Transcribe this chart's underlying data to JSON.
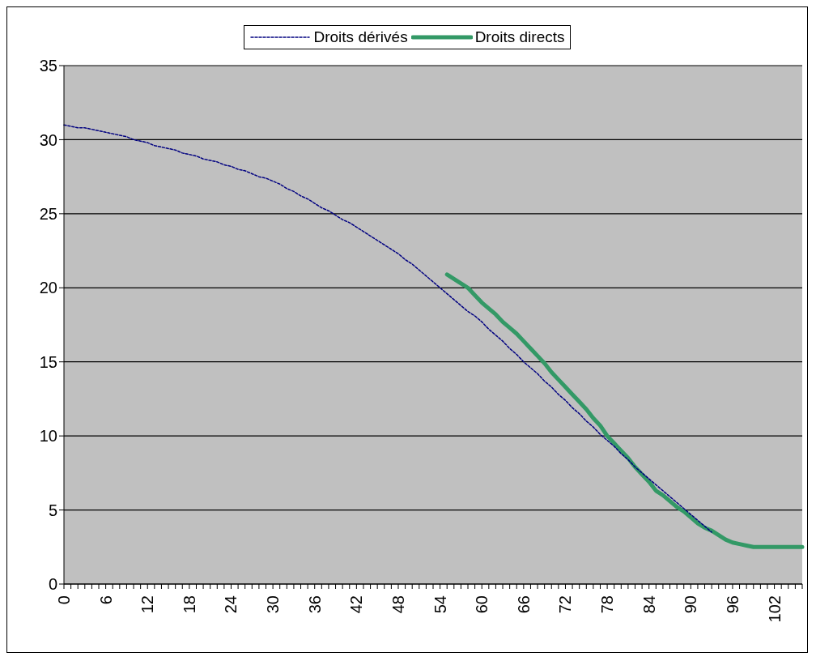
{
  "chart_data": {
    "type": "line",
    "categories": [
      "0",
      null,
      null,
      null,
      null,
      null,
      "6",
      null,
      null,
      null,
      null,
      null,
      "12",
      null,
      null,
      null,
      null,
      null,
      "18",
      null,
      null,
      null,
      null,
      null,
      "24",
      null,
      null,
      null,
      null,
      null,
      "30",
      null,
      null,
      null,
      null,
      null,
      "36",
      null,
      null,
      null,
      null,
      null,
      "42",
      null,
      null,
      null,
      null,
      null,
      "48",
      null,
      null,
      null,
      null,
      null,
      "54",
      null,
      null,
      null,
      null,
      null,
      "60",
      null,
      null,
      null,
      null,
      null,
      "66",
      null,
      null,
      null,
      null,
      null,
      "72",
      null,
      null,
      null,
      null,
      null,
      "78",
      null,
      null,
      null,
      null,
      null,
      "84",
      null,
      null,
      null,
      null,
      null,
      "90",
      null,
      null,
      null,
      null,
      null,
      "96",
      null,
      null,
      null,
      null,
      null,
      "102",
      null,
      null,
      null,
      null
    ],
    "series": [
      {
        "name": "Droits dérivés",
        "color": "#000080",
        "line_style": "dashed",
        "values": [
          31.0,
          30.9,
          30.8,
          30.8,
          30.7,
          30.6,
          30.5,
          30.4,
          30.3,
          30.2,
          30.0,
          29.9,
          29.8,
          29.6,
          29.5,
          29.4,
          29.3,
          29.1,
          29.0,
          28.9,
          28.7,
          28.6,
          28.5,
          28.3,
          28.2,
          28.0,
          27.9,
          27.7,
          27.5,
          27.4,
          27.2,
          27.0,
          26.7,
          26.5,
          26.2,
          26.0,
          25.7,
          25.4,
          25.2,
          24.9,
          24.6,
          24.4,
          24.1,
          23.8,
          23.5,
          23.2,
          22.9,
          22.6,
          22.3,
          21.9,
          21.6,
          21.2,
          20.8,
          20.4,
          20.0,
          19.6,
          19.2,
          18.8,
          18.4,
          18.1,
          17.7,
          17.2,
          16.8,
          16.4,
          15.9,
          15.5,
          15.0,
          14.6,
          14.2,
          13.7,
          13.3,
          12.8,
          12.4,
          11.9,
          11.5,
          11.0,
          10.6,
          10.1,
          9.7,
          9.3,
          8.8,
          8.4,
          7.9,
          7.5,
          7.1,
          6.7,
          6.3,
          5.9,
          5.5,
          5.1,
          4.7,
          4.3,
          3.9,
          3.5,
          null,
          null,
          null,
          null,
          null,
          null,
          null,
          null,
          null,
          null,
          null,
          null,
          null
        ]
      },
      {
        "name": "Droits directs",
        "color": "#339966",
        "line_style": "solid",
        "values": [
          null,
          null,
          null,
          null,
          null,
          null,
          null,
          null,
          null,
          null,
          null,
          null,
          null,
          null,
          null,
          null,
          null,
          null,
          null,
          null,
          null,
          null,
          null,
          null,
          null,
          null,
          null,
          null,
          null,
          null,
          null,
          null,
          null,
          null,
          null,
          null,
          null,
          null,
          null,
          null,
          null,
          null,
          null,
          null,
          null,
          null,
          null,
          null,
          null,
          null,
          null,
          null,
          null,
          null,
          null,
          20.9,
          20.6,
          20.3,
          20.0,
          19.5,
          19.0,
          18.6,
          18.2,
          17.7,
          17.3,
          16.9,
          16.4,
          15.9,
          15.4,
          14.9,
          14.3,
          13.8,
          13.3,
          12.8,
          12.3,
          11.8,
          11.2,
          10.7,
          10.0,
          9.5,
          9.0,
          8.5,
          7.9,
          7.4,
          6.9,
          6.3,
          6.0,
          5.6,
          5.2,
          4.9,
          4.5,
          4.1,
          3.8,
          3.6,
          3.3,
          3.0,
          2.8,
          2.7,
          2.6,
          2.5,
          2.5,
          2.5,
          2.5,
          2.5,
          2.5,
          2.5,
          2.5
        ]
      }
    ],
    "ylim": [
      0,
      35
    ],
    "yticks": [
      0,
      5,
      10,
      15,
      20,
      25,
      30,
      35
    ],
    "grid": "y",
    "legend": "top",
    "marker": "none"
  }
}
